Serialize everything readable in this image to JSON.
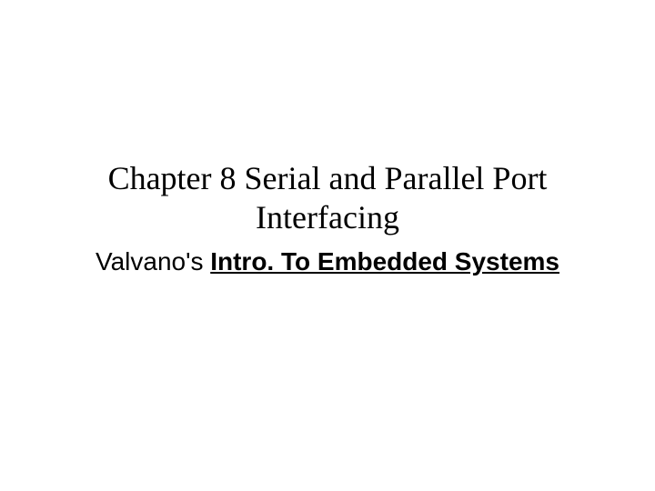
{
  "slide": {
    "title": "Chapter 8 Serial and Parallel Port Interfacing",
    "subtitle_prefix": "Valvano's ",
    "subtitle_book": "Intro. To Embedded Systems",
    "background_color": "#ffffff",
    "text_color": "#000000",
    "title_fontsize": 36,
    "subtitle_fontsize": 28,
    "title_font_family": "Times New Roman",
    "subtitle_font_family": "Arial"
  }
}
